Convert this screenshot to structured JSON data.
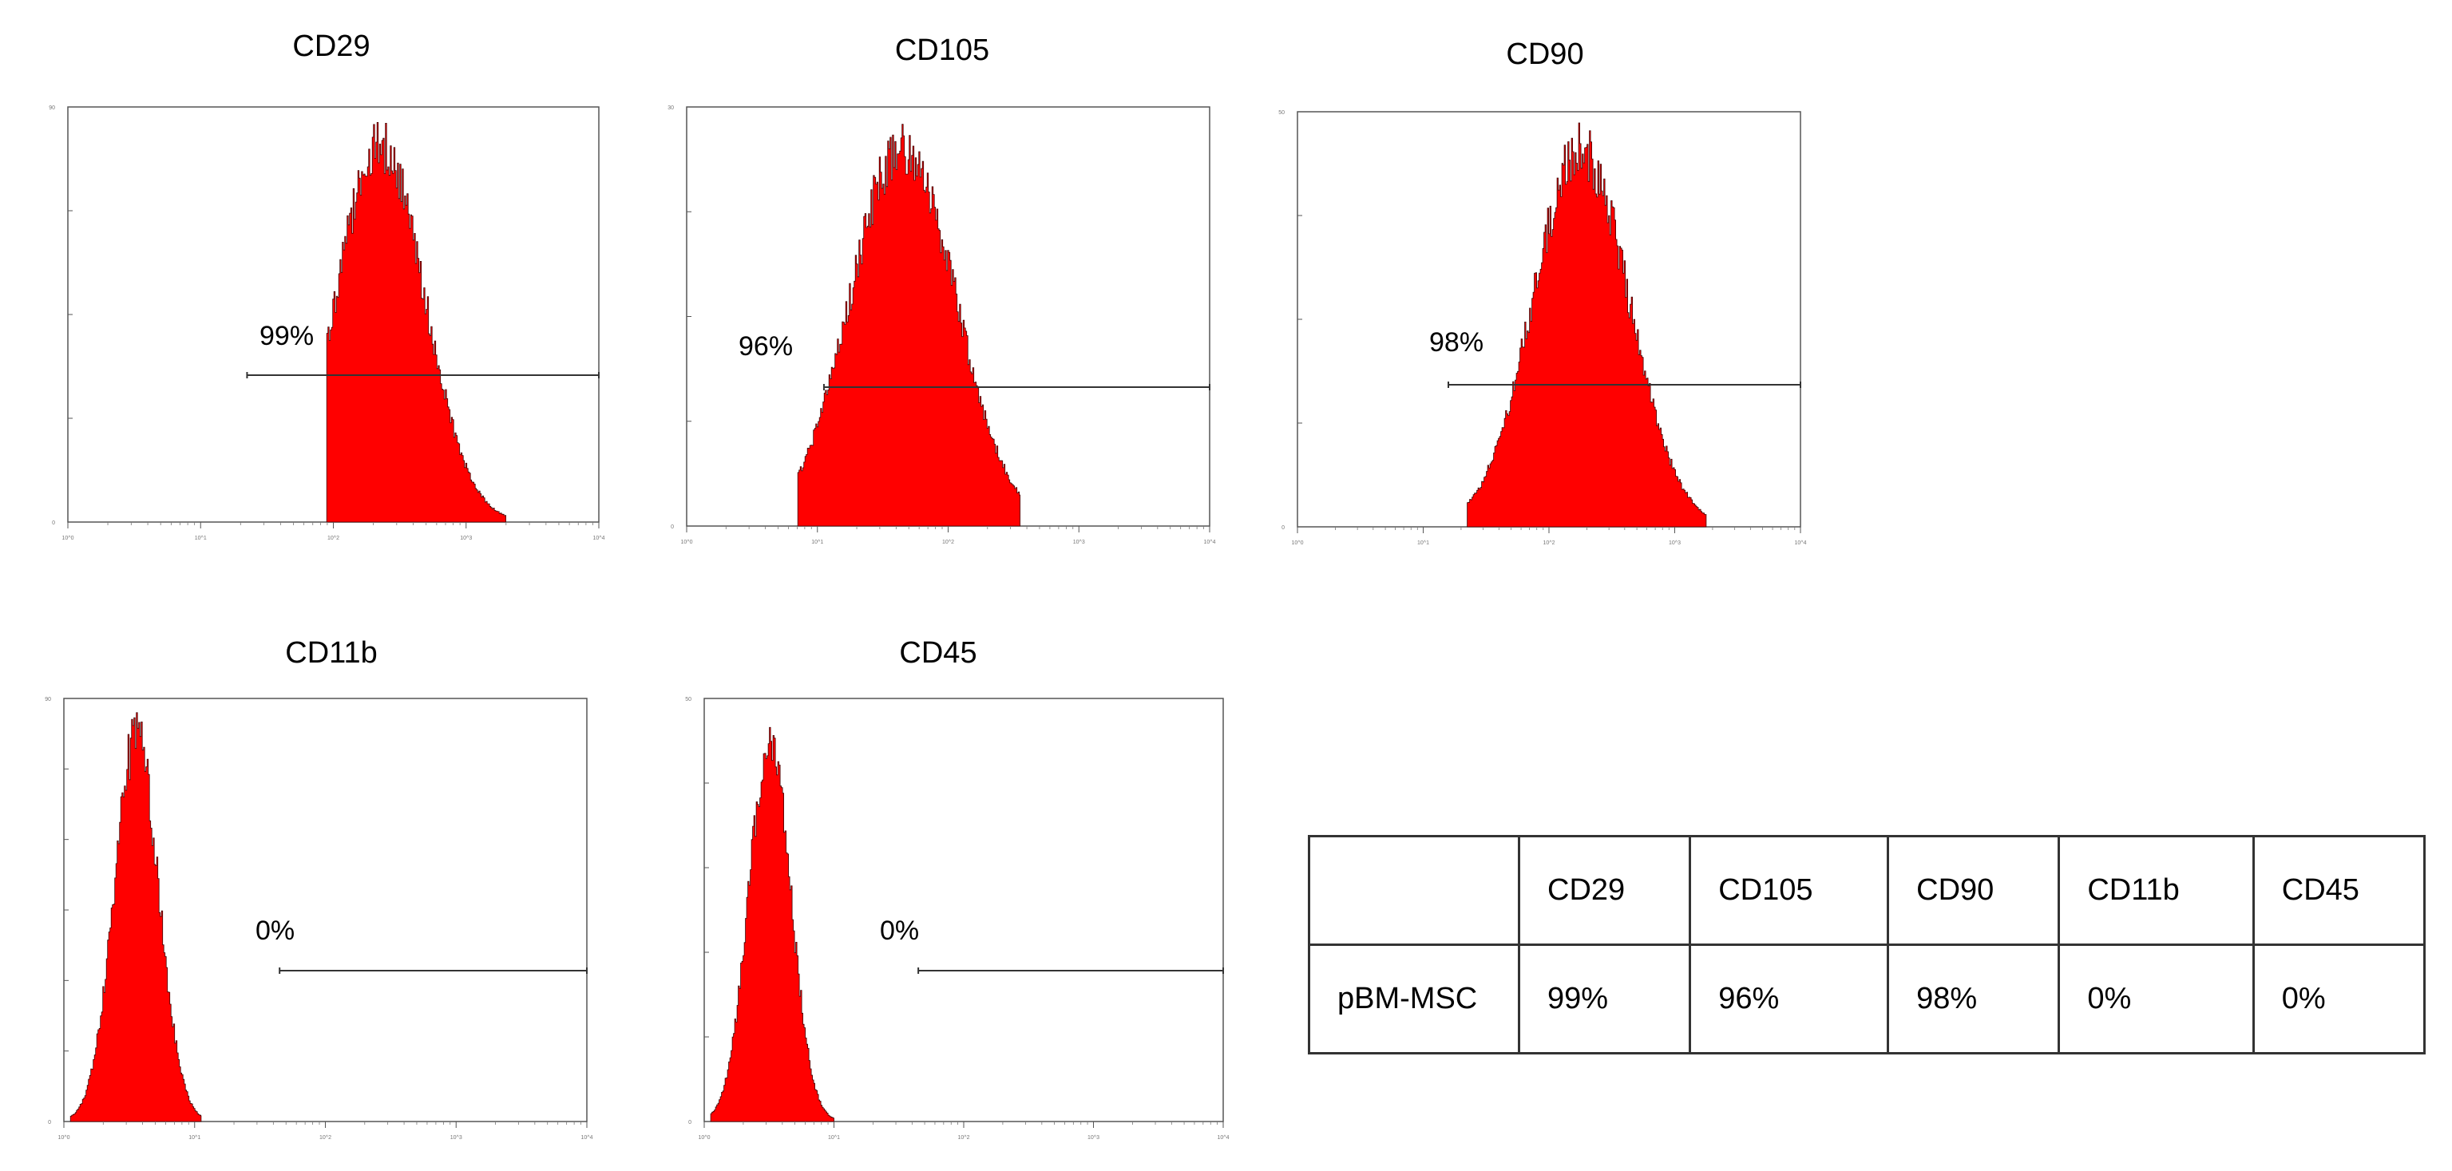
{
  "chart_data": [
    {
      "type": "histogram",
      "title": "CD29",
      "gate_percent": "99%",
      "color": "#ff0000",
      "x_scale": "log",
      "xlim_decades": [
        0,
        4
      ],
      "peak_decade": 2.35,
      "peak_width": 0.33,
      "range_decades": [
        1.95,
        3.3
      ],
      "gate_range_decades": [
        1.35,
        4.0
      ],
      "xtick_labels": [
        "10^0",
        "10^1",
        "10^2",
        "10^3",
        "10^4"
      ],
      "ytick_labels": [
        "0",
        "",
        "",
        "",
        "90"
      ]
    },
    {
      "type": "histogram",
      "title": "CD105",
      "gate_percent": "96%",
      "color": "#ff0000",
      "x_scale": "log",
      "xlim_decades": [
        0,
        4
      ],
      "peak_decade": 1.65,
      "peak_width": 0.4,
      "range_decades": [
        0.85,
        2.55
      ],
      "gate_range_decades": [
        1.05,
        4.0
      ],
      "xtick_labels": [
        "10^0",
        "10^1",
        "10^2",
        "10^3",
        "10^4"
      ],
      "ytick_labels": [
        "0",
        "",
        "",
        "",
        "30"
      ]
    },
    {
      "type": "histogram",
      "title": "CD90",
      "gate_percent": "98%",
      "color": "#ff0000",
      "x_scale": "log",
      "xlim_decades": [
        0,
        4
      ],
      "peak_decade": 2.25,
      "peak_width": 0.38,
      "range_decades": [
        1.35,
        3.25
      ],
      "gate_range_decades": [
        1.2,
        4.0
      ],
      "xtick_labels": [
        "10^0",
        "10^1",
        "10^2",
        "10^3",
        "10^4"
      ],
      "ytick_labels": [
        "0",
        "",
        "",
        "",
        "50"
      ]
    },
    {
      "type": "histogram",
      "title": "CD11b",
      "gate_percent": "0%",
      "color": "#ff0000",
      "x_scale": "log",
      "xlim_decades": [
        0,
        4
      ],
      "peak_decade": 0.55,
      "peak_width": 0.17,
      "range_decades": [
        0.05,
        1.05
      ],
      "gate_range_decades": [
        1.65,
        4.0
      ],
      "xtick_labels": [
        "10^0",
        "10^1",
        "10^2",
        "10^3",
        "10^4"
      ],
      "ytick_labels": [
        "0",
        "",
        "",
        "",
        "",
        "",
        "90"
      ]
    },
    {
      "type": "histogram",
      "title": "CD45",
      "gate_percent": "0%",
      "color": "#ff0000",
      "x_scale": "log",
      "xlim_decades": [
        0,
        4
      ],
      "peak_decade": 0.5,
      "peak_width": 0.16,
      "range_decades": [
        0.05,
        1.0
      ],
      "gate_range_decades": [
        1.65,
        4.0
      ],
      "xtick_labels": [
        "10^0",
        "10^1",
        "10^2",
        "10^3",
        "10^4"
      ],
      "ytick_labels": [
        "0",
        "",
        "",
        "",
        "",
        "50"
      ]
    },
    {
      "type": "table",
      "columns": [
        "",
        "CD29",
        "CD105",
        "CD90",
        "CD11b",
        "CD45"
      ],
      "rows": [
        [
          "pBM-MSC",
          "99%",
          "96%",
          "98%",
          "0%",
          "0%"
        ]
      ]
    }
  ]
}
